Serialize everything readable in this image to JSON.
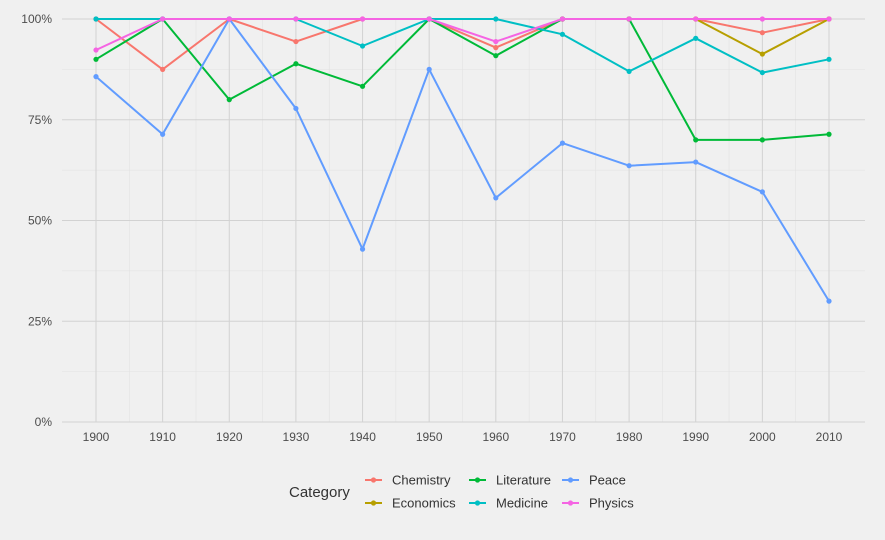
{
  "chart_data": {
    "type": "line",
    "x": [
      1900,
      1910,
      1920,
      1930,
      1940,
      1950,
      1960,
      1970,
      1980,
      1990,
      2000,
      2010
    ],
    "x_tick_labels": [
      "1900",
      "1910",
      "1920",
      "1930",
      "1940",
      "1950",
      "1960",
      "1970",
      "1980",
      "1990",
      "2000",
      "2010"
    ],
    "y_tick_values": [
      0,
      0.25,
      0.5,
      0.75,
      1.0
    ],
    "y_tick_labels": [
      "0%",
      "25%",
      "50%",
      "75%",
      "100%"
    ],
    "ylim": [
      0,
      1
    ],
    "grid": true,
    "legend_title": "Category",
    "legend_position": "bottom",
    "series": [
      {
        "name": "Chemistry",
        "color": "#F8766D",
        "values": [
          1.0,
          0.875,
          1.0,
          0.944,
          1.0,
          1.0,
          0.929,
          1.0,
          1.0,
          1.0,
          0.966,
          1.0
        ]
      },
      {
        "name": "Economics",
        "color": "#B79F00",
        "values": [
          null,
          null,
          null,
          null,
          null,
          null,
          null,
          1.0,
          1.0,
          1.0,
          0.913,
          1.0
        ]
      },
      {
        "name": "Literature",
        "color": "#00BA38",
        "values": [
          0.9,
          1.0,
          0.8,
          0.889,
          0.833,
          1.0,
          0.909,
          1.0,
          1.0,
          0.7,
          0.7,
          0.714
        ]
      },
      {
        "name": "Medicine",
        "color": "#00BFC4",
        "values": [
          1.0,
          1.0,
          1.0,
          1.0,
          0.933,
          1.0,
          1.0,
          0.962,
          0.87,
          0.952,
          0.867,
          0.9
        ]
      },
      {
        "name": "Peace",
        "color": "#619CFF",
        "values": [
          0.857,
          0.714,
          1.0,
          0.778,
          0.429,
          0.875,
          0.556,
          0.692,
          0.636,
          0.645,
          0.571,
          0.3
        ]
      },
      {
        "name": "Physics",
        "color": "#F564E3",
        "values": [
          0.923,
          1.0,
          1.0,
          1.0,
          1.0,
          1.0,
          0.944,
          1.0,
          1.0,
          1.0,
          1.0,
          1.0
        ]
      }
    ]
  }
}
